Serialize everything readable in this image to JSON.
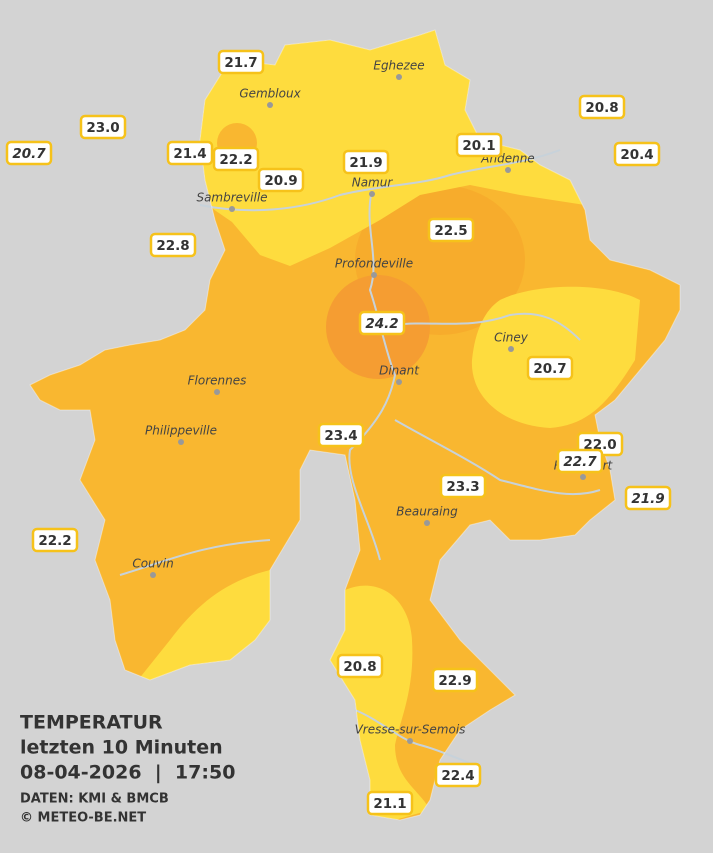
{
  "title": {
    "heading": "TEMPERATUR",
    "period": "letzten 10 Minuten",
    "datetime": "08-04-2026  |  17:50",
    "source": "DATEN: KMI & BMCB",
    "copyright": "© METEO-BE.NET"
  },
  "cities": [
    "Eghezee",
    "Gembloux",
    "Andenne",
    "Namur",
    "Sambreville",
    "Profondeville",
    "Ciney",
    "Dinant",
    "Florennes",
    "Philippeville",
    "Beauraing",
    "Couvin",
    "Vresse-sur-Semois",
    "Rochefort"
  ],
  "stations": [
    {
      "label": "21.7",
      "italic": false
    },
    {
      "label": "23.0",
      "italic": false
    },
    {
      "label": "20.7",
      "italic": true
    },
    {
      "label": "21.4",
      "italic": false
    },
    {
      "label": "22.2",
      "italic": false
    },
    {
      "label": "20.9",
      "italic": false
    },
    {
      "label": "21.9",
      "italic": false
    },
    {
      "label": "20.1",
      "italic": false
    },
    {
      "label": "20.8",
      "italic": false
    },
    {
      "label": "20.4",
      "italic": false
    },
    {
      "label": "22.8",
      "italic": false
    },
    {
      "label": "22.5",
      "italic": false
    },
    {
      "label": "24.2",
      "italic": true
    },
    {
      "label": "20.7",
      "italic": false
    },
    {
      "label": "23.4",
      "italic": false
    },
    {
      "label": "22.0",
      "italic": false
    },
    {
      "label": "22.7",
      "italic": true
    },
    {
      "label": "23.3",
      "italic": false
    },
    {
      "label": "21.9",
      "italic": true
    },
    {
      "label": "22.2",
      "italic": false
    },
    {
      "label": "20.8",
      "italic": false
    },
    {
      "label": "22.9",
      "italic": false
    },
    {
      "label": "22.4",
      "italic": false
    },
    {
      "label": "21.1",
      "italic": false
    }
  ]
}
